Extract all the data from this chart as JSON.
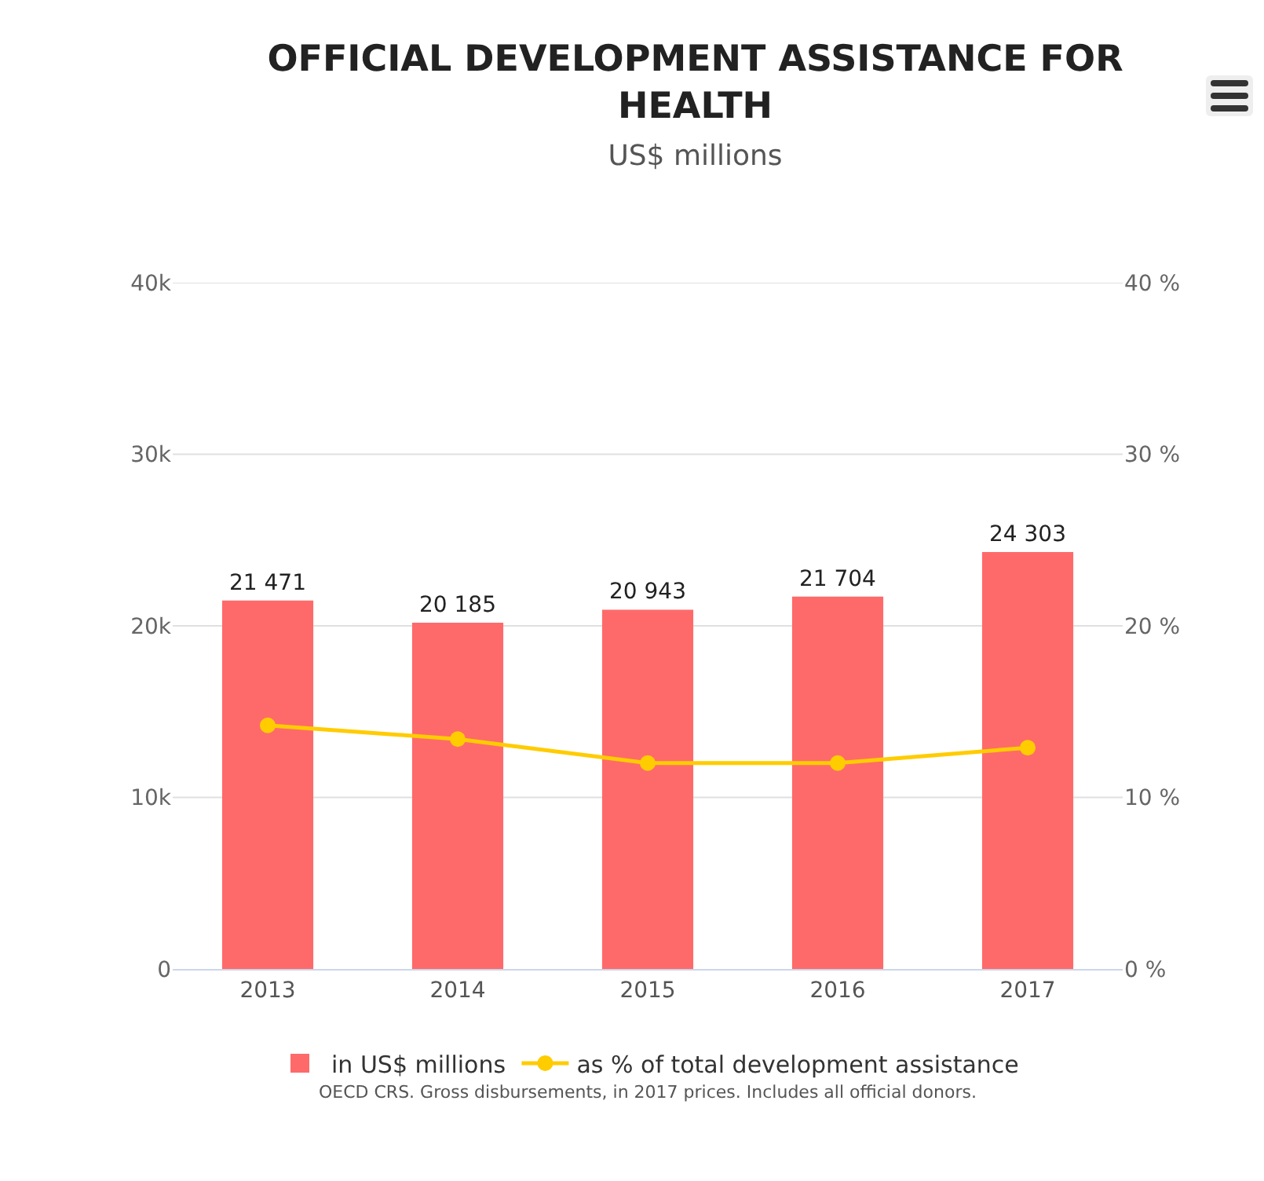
{
  "chart_data": {
    "type": "bar",
    "title": "OFFICIAL DEVELOPMENT ASSISTANCE FOR HEALTH",
    "subtitle": "US$ millions",
    "categories": [
      "2013",
      "2014",
      "2015",
      "2016",
      "2017"
    ],
    "series": [
      {
        "name": "in US$ millions",
        "color": "#fe6a6a",
        "values": [
          21471,
          20185,
          20943,
          21704,
          24303
        ],
        "value_labels": [
          "21 471",
          "20 185",
          "20 943",
          "21 704",
          "24 303"
        ]
      },
      {
        "name": "as % of total development assistance",
        "type": "line",
        "axis": "y2",
        "color": "#ffcc00",
        "values": [
          14.2,
          13.4,
          12.0,
          12.0,
          12.9
        ]
      }
    ],
    "ylim": [
      0,
      40000
    ],
    "yticks": [
      {
        "value": 0,
        "label": "0"
      },
      {
        "value": 10000,
        "label": "10k"
      },
      {
        "value": 20000,
        "label": "20k"
      },
      {
        "value": 30000,
        "label": "30k"
      },
      {
        "value": 40000,
        "label": "40k"
      }
    ],
    "y2lim": [
      0,
      40
    ],
    "y2ticks": [
      {
        "value": 0,
        "label": "0 %"
      },
      {
        "value": 10,
        "label": "10 %"
      },
      {
        "value": 20,
        "label": "20 %"
      },
      {
        "value": 30,
        "label": "30 %"
      },
      {
        "value": 40,
        "label": "40 %"
      }
    ],
    "grid": "y",
    "legend": "bottom",
    "marker": "circle",
    "line_style": "solid",
    "annotations": [
      "OECD CRS. Gross disbursements, in 2017 prices. Includes all official donors."
    ]
  }
}
